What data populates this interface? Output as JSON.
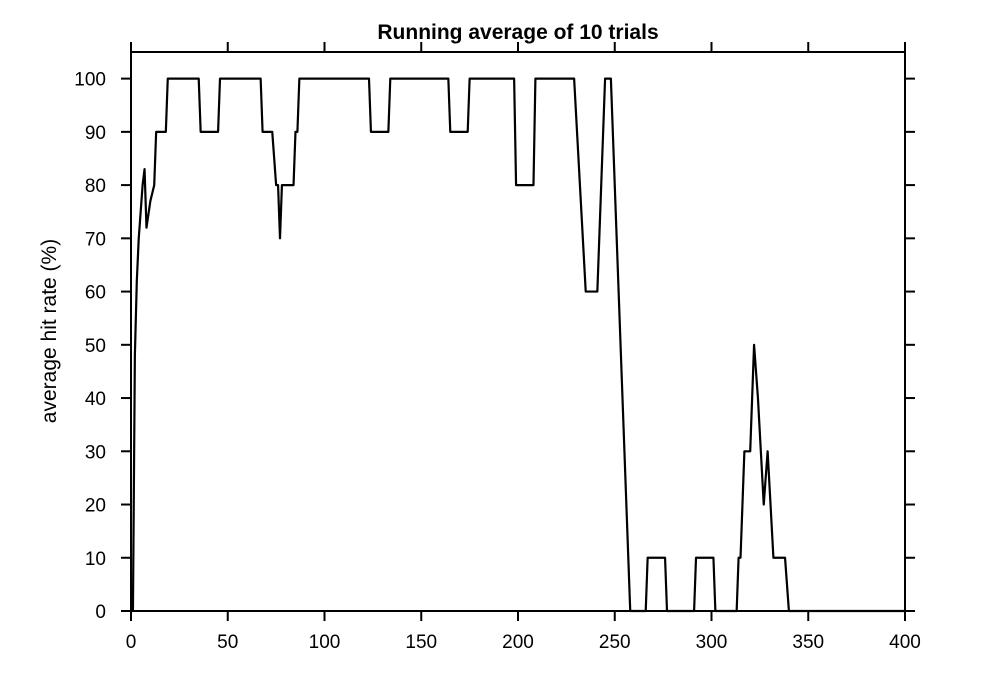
{
  "chart_data": {
    "type": "line",
    "title": "Running average of 10 trials",
    "xlabel": "",
    "ylabel": "average hit rate (%)",
    "xlim": [
      0,
      400
    ],
    "ylim": [
      0,
      105
    ],
    "xticks": [
      0,
      50,
      100,
      150,
      200,
      250,
      300,
      350,
      400
    ],
    "yticks": [
      0,
      10,
      20,
      30,
      40,
      50,
      60,
      70,
      80,
      90,
      100
    ],
    "grid": false,
    "line_color": "#000000",
    "series": [
      {
        "points": [
          [
            0,
            0
          ],
          [
            1,
            0
          ],
          [
            2,
            48
          ],
          [
            3,
            62
          ],
          [
            4,
            70
          ],
          [
            5,
            75
          ],
          [
            6,
            80
          ],
          [
            7,
            83
          ],
          [
            8,
            72
          ],
          [
            10,
            77
          ],
          [
            12,
            80
          ],
          [
            13,
            90
          ],
          [
            18,
            90
          ],
          [
            19,
            100
          ],
          [
            35,
            100
          ],
          [
            36,
            90
          ],
          [
            45,
            90
          ],
          [
            46,
            100
          ],
          [
            67,
            100
          ],
          [
            68,
            90
          ],
          [
            73,
            90
          ],
          [
            75,
            80
          ],
          [
            76,
            80
          ],
          [
            77,
            70
          ],
          [
            78,
            80
          ],
          [
            84,
            80
          ],
          [
            85,
            90
          ],
          [
            86,
            90
          ],
          [
            87,
            100
          ],
          [
            123,
            100
          ],
          [
            124,
            90
          ],
          [
            133,
            90
          ],
          [
            134,
            100
          ],
          [
            164,
            100
          ],
          [
            165,
            90
          ],
          [
            174,
            90
          ],
          [
            175,
            100
          ],
          [
            198,
            100
          ],
          [
            199,
            80
          ],
          [
            208,
            80
          ],
          [
            209,
            100
          ],
          [
            229,
            100
          ],
          [
            235,
            60
          ],
          [
            241,
            60
          ],
          [
            245,
            100
          ],
          [
            248,
            100
          ],
          [
            258,
            0
          ],
          [
            266,
            0
          ],
          [
            267,
            10
          ],
          [
            276,
            10
          ],
          [
            277,
            0
          ],
          [
            291,
            0
          ],
          [
            292,
            10
          ],
          [
            301,
            10
          ],
          [
            302,
            0
          ],
          [
            313,
            0
          ],
          [
            314,
            10
          ],
          [
            315,
            10
          ],
          [
            317,
            30
          ],
          [
            320,
            30
          ],
          [
            322,
            50
          ],
          [
            324,
            40
          ],
          [
            327,
            20
          ],
          [
            329,
            30
          ],
          [
            332,
            10
          ],
          [
            338,
            10
          ],
          [
            340,
            0
          ],
          [
            400,
            0
          ]
        ]
      }
    ]
  }
}
